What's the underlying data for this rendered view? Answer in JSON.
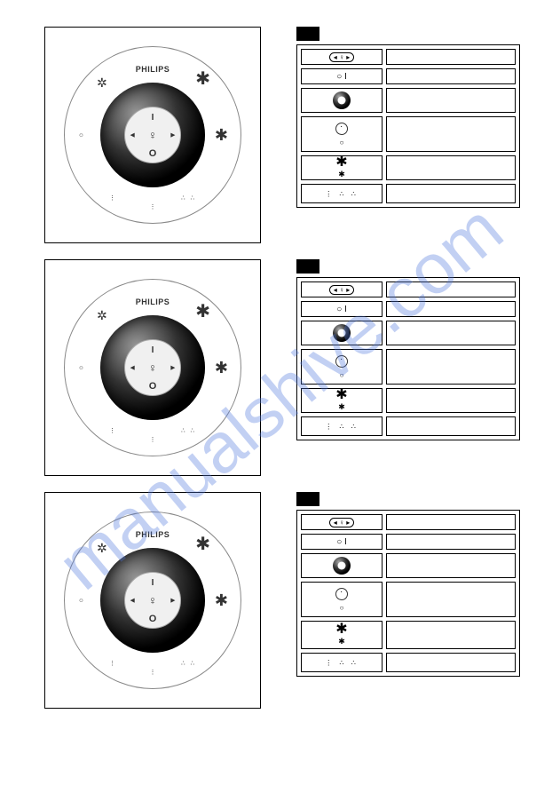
{
  "watermark": "manualshive.com",
  "brand": "PHILIPS",
  "center_controls": {
    "up": "I",
    "down": "O",
    "left": "◂",
    "right": "▸",
    "mid": "♀"
  },
  "outer_icons": {
    "nw": "✲",
    "ne": "✱",
    "w": "○",
    "e": "✱",
    "sw": "⋮",
    "s": "⋮",
    "se": "∴ ∴"
  },
  "rows": [
    {
      "cells": [
        {
          "leftType": "nav",
          "h": "h18",
          "rH": "h18"
        },
        {
          "leftType": "oi",
          "content": "○   I",
          "h": "h18",
          "rH": "h18"
        },
        {
          "leftType": "ring",
          "h": "h28",
          "rH": "h28"
        },
        {
          "leftType": "dotring_small",
          "h": "h40",
          "rH": "h40",
          "stack2": true
        },
        {
          "leftType": "star",
          "content": "✱",
          "h": "h28",
          "rH": "h28",
          "stack2b": true
        },
        {
          "leftType": "dots",
          "content": "⋮  ∴  ∴",
          "h": "h22",
          "rH": "h22"
        }
      ]
    },
    {
      "cells": [
        {
          "leftType": "nav",
          "h": "h18",
          "rH": "h18"
        },
        {
          "leftType": "oi",
          "content": "○   I",
          "h": "h18",
          "rH": "h18"
        },
        {
          "leftType": "ring",
          "h": "h28",
          "rH": "h28"
        },
        {
          "leftType": "dotring_small",
          "h": "h40",
          "rH": "h40",
          "stack2": true
        },
        {
          "leftType": "star",
          "content": "✱",
          "h": "h28",
          "rH": "h28",
          "stack2b": true
        },
        {
          "leftType": "dots",
          "content": "⋮  ∴  ∴",
          "h": "h22",
          "rH": "h22"
        }
      ]
    },
    {
      "cells": [
        {
          "leftType": "nav",
          "h": "h18",
          "rH": "h18"
        },
        {
          "leftType": "oi",
          "content": "○   I",
          "h": "h18",
          "rH": "h18"
        },
        {
          "leftType": "ring",
          "h": "h28",
          "rH": "h28"
        },
        {
          "leftType": "dotring_small",
          "h": "h40",
          "rH": "h40",
          "stack2": true
        },
        {
          "leftType": "star",
          "content": "✱",
          "h": "h32",
          "rH": "h32",
          "stack2b": true
        },
        {
          "leftType": "dots",
          "content": "⋮  ∴  ∴",
          "h": "h22",
          "rH": "h22"
        }
      ]
    }
  ]
}
